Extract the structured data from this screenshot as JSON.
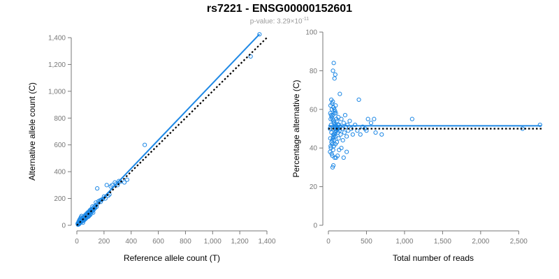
{
  "title": "rs7221 - ENSG00000152601",
  "subtitle": {
    "prefix": "p-value: 3.29×10",
    "exponent": "-11"
  },
  "colors": {
    "points": "#1e88e5",
    "fit_line": "#1e88e5",
    "reference_line": "#000000",
    "axis": "#777777"
  },
  "chart_data": [
    {
      "type": "scatter",
      "xlabel": "Reference allele count (T)",
      "ylabel": "Alternative allele count (C)",
      "xlim": [
        0,
        1400
      ],
      "ylim": [
        0,
        1400
      ],
      "xticks": [
        "0",
        "200",
        "400",
        "600",
        "800",
        "1,000",
        "1,200",
        "1,400"
      ],
      "yticks": [
        "0",
        "200",
        "400",
        "600",
        "800",
        "1,000",
        "1,200",
        "1,400"
      ],
      "fit_line": {
        "slope": 1.06,
        "intercept": 0,
        "x_range": [
          0,
          1345
        ]
      },
      "reference_line": {
        "slope": 1.0,
        "intercept": 0,
        "x_range": [
          0,
          1400
        ],
        "style": "dotted"
      },
      "grid": false,
      "points": [
        [
          10,
          8
        ],
        [
          12,
          14
        ],
        [
          15,
          10
        ],
        [
          18,
          20
        ],
        [
          20,
          16
        ],
        [
          22,
          25
        ],
        [
          25,
          22
        ],
        [
          28,
          30
        ],
        [
          30,
          27
        ],
        [
          32,
          35
        ],
        [
          35,
          38
        ],
        [
          38,
          33
        ],
        [
          40,
          44
        ],
        [
          42,
          40
        ],
        [
          45,
          48
        ],
        [
          48,
          46
        ],
        [
          50,
          55
        ],
        [
          52,
          50
        ],
        [
          55,
          60
        ],
        [
          58,
          54
        ],
        [
          60,
          65
        ],
        [
          62,
          58
        ],
        [
          65,
          70
        ],
        [
          68,
          66
        ],
        [
          70,
          75
        ],
        [
          72,
          68
        ],
        [
          75,
          80
        ],
        [
          78,
          74
        ],
        [
          80,
          86
        ],
        [
          82,
          78
        ],
        [
          85,
          90
        ],
        [
          88,
          84
        ],
        [
          90,
          96
        ],
        [
          92,
          88
        ],
        [
          95,
          100
        ],
        [
          98,
          94
        ],
        [
          100,
          105
        ],
        [
          105,
          98
        ],
        [
          110,
          118
        ],
        [
          115,
          108
        ],
        [
          120,
          128
        ],
        [
          125,
          118
        ],
        [
          130,
          140
        ],
        [
          135,
          130
        ],
        [
          140,
          150
        ],
        [
          145,
          138
        ],
        [
          150,
          160
        ],
        [
          14,
          30
        ],
        [
          20,
          42
        ],
        [
          25,
          50
        ],
        [
          30,
          60
        ],
        [
          35,
          70
        ],
        [
          40,
          30
        ],
        [
          45,
          20
        ],
        [
          50,
          35
        ],
        [
          55,
          40
        ],
        [
          60,
          45
        ],
        [
          65,
          50
        ],
        [
          70,
          55
        ],
        [
          75,
          60
        ],
        [
          80,
          95
        ],
        [
          85,
          65
        ],
        [
          90,
          70
        ],
        [
          95,
          110
        ],
        [
          100,
          80
        ],
        [
          110,
          100
        ],
        [
          120,
          95
        ],
        [
          8,
          5
        ],
        [
          12,
          6
        ],
        [
          16,
          9
        ],
        [
          6,
          12
        ],
        [
          9,
          18
        ],
        [
          14,
          22
        ],
        [
          18,
          12
        ],
        [
          24,
          18
        ],
        [
          26,
          40
        ],
        [
          33,
          26
        ],
        [
          36,
          52
        ],
        [
          44,
          34
        ],
        [
          47,
          60
        ],
        [
          53,
          42
        ],
        [
          57,
          72
        ],
        [
          63,
          48
        ],
        [
          67,
          82
        ],
        [
          73,
          58
        ],
        [
          77,
          92
        ],
        [
          83,
          64
        ],
        [
          87,
          100
        ],
        [
          93,
          74
        ],
        [
          97,
          112
        ],
        [
          150,
          275
        ],
        [
          160,
          180
        ],
        [
          175,
          175
        ],
        [
          180,
          190
        ],
        [
          200,
          215
        ],
        [
          210,
          200
        ],
        [
          220,
          300
        ],
        [
          230,
          220
        ],
        [
          240,
          230
        ],
        [
          250,
          290
        ],
        [
          260,
          300
        ],
        [
          280,
          320
        ],
        [
          290,
          310
        ],
        [
          300,
          300
        ],
        [
          310,
          330
        ],
        [
          320,
          325
        ],
        [
          350,
          320
        ],
        [
          370,
          340
        ],
        [
          500,
          600
        ],
        [
          1280,
          1260
        ],
        [
          1345,
          1425
        ],
        [
          170,
          185
        ],
        [
          190,
          195
        ],
        [
          140,
          170
        ],
        [
          130,
          125
        ],
        [
          115,
          140
        ],
        [
          105,
          120
        ]
      ]
    },
    {
      "type": "scatter",
      "xlabel": "Total number of reads",
      "ylabel": "Percentage alternative (C)",
      "xlim": [
        0,
        2800
      ],
      "ylim": [
        0,
        100
      ],
      "xticks": [
        "0",
        "500",
        "1,000",
        "1,500",
        "2,000",
        "2,500"
      ],
      "yticks": [
        "0",
        "20",
        "40",
        "60",
        "80",
        "100"
      ],
      "fit_line": {
        "value": 51.5,
        "x_range": [
          0,
          2800
        ]
      },
      "reference_line": {
        "value": 50,
        "x_range": [
          0,
          2800
        ],
        "style": "dotted"
      },
      "grid": false,
      "points": [
        [
          20,
          50
        ],
        [
          25,
          45
        ],
        [
          30,
          55
        ],
        [
          35,
          52
        ],
        [
          40,
          48
        ],
        [
          45,
          60
        ],
        [
          50,
          42
        ],
        [
          55,
          57
        ],
        [
          60,
          50
        ],
        [
          65,
          47
        ],
        [
          70,
          53
        ],
        [
          75,
          44
        ],
        [
          80,
          58
        ],
        [
          85,
          51
        ],
        [
          90,
          46
        ],
        [
          95,
          62
        ],
        [
          100,
          49
        ],
        [
          105,
          55
        ],
        [
          110,
          43
        ],
        [
          115,
          54
        ],
        [
          120,
          50
        ],
        [
          125,
          48
        ],
        [
          130,
          56
        ],
        [
          135,
          45
        ],
        [
          140,
          52
        ],
        [
          150,
          68
        ],
        [
          160,
          47
        ],
        [
          170,
          55
        ],
        [
          180,
          50
        ],
        [
          190,
          44
        ],
        [
          200,
          53
        ],
        [
          210,
          48
        ],
        [
          220,
          57
        ],
        [
          230,
          51
        ],
        [
          240,
          46
        ],
        [
          250,
          52
        ],
        [
          260,
          49
        ],
        [
          280,
          54
        ],
        [
          300,
          50
        ],
        [
          320,
          47
        ],
        [
          22,
          38
        ],
        [
          28,
          62
        ],
        [
          32,
          40
        ],
        [
          38,
          65
        ],
        [
          42,
          37
        ],
        [
          48,
          63
        ],
        [
          52,
          36
        ],
        [
          58,
          64
        ],
        [
          62,
          39
        ],
        [
          68,
          61
        ],
        [
          72,
          41
        ],
        [
          78,
          60
        ],
        [
          82,
          35
        ],
        [
          88,
          59
        ],
        [
          92,
          42
        ],
        [
          98,
          58
        ],
        [
          60,
          80
        ],
        [
          70,
          84
        ],
        [
          80,
          76
        ],
        [
          90,
          78
        ],
        [
          55,
          30
        ],
        [
          65,
          31
        ],
        [
          100,
          35
        ],
        [
          120,
          36
        ],
        [
          140,
          39
        ],
        [
          170,
          40
        ],
        [
          200,
          35
        ],
        [
          240,
          38
        ],
        [
          25,
          58
        ],
        [
          30,
          41
        ],
        [
          35,
          57
        ],
        [
          40,
          43
        ],
        [
          45,
          56
        ],
        [
          50,
          44
        ],
        [
          55,
          55
        ],
        [
          60,
          45
        ],
        [
          65,
          54
        ],
        [
          70,
          46
        ],
        [
          75,
          53
        ],
        [
          80,
          47
        ],
        [
          85,
          52
        ],
        [
          90,
          48
        ],
        [
          95,
          51
        ],
        [
          105,
          49
        ],
        [
          110,
          50
        ],
        [
          115,
          51
        ],
        [
          125,
          52
        ],
        [
          130,
          50
        ],
        [
          145,
          49
        ],
        [
          155,
          51
        ],
        [
          400,
          65
        ],
        [
          420,
          47
        ],
        [
          500,
          49
        ],
        [
          520,
          55
        ],
        [
          560,
          53
        ],
        [
          600,
          55
        ],
        [
          620,
          48
        ],
        [
          700,
          47
        ],
        [
          1100,
          55
        ],
        [
          2550,
          50
        ],
        [
          2780,
          52
        ],
        [
          350,
          52
        ],
        [
          380,
          49
        ],
        [
          450,
          51
        ],
        [
          480,
          50
        ]
      ]
    }
  ]
}
